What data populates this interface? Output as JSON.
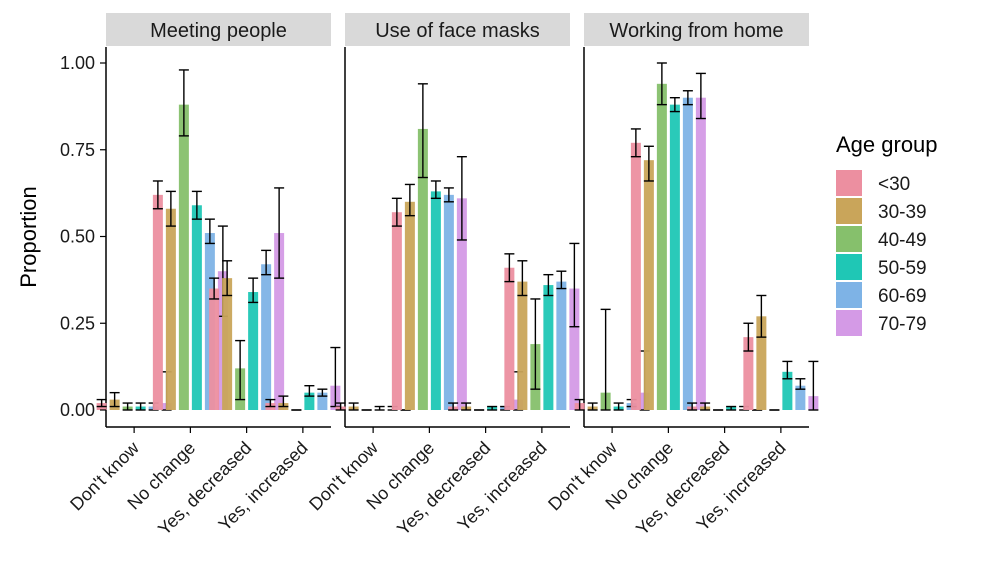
{
  "chart_data": {
    "type": "bar",
    "facet_variable": "behaviour",
    "facets": [
      "Meeting people",
      "Use of face masks",
      "Working from home"
    ],
    "categories": [
      "Don't know",
      "No change",
      "Yes, decreased",
      "Yes, increased"
    ],
    "ylabel": "Proportion",
    "xlabel": "",
    "ylim": [
      0,
      1.05
    ],
    "yticks": [
      "0.00",
      "0.25",
      "0.50",
      "0.75",
      "1.00"
    ],
    "ytick_values": [
      0,
      0.25,
      0.5,
      0.75,
      1.0
    ],
    "grid": false,
    "legend": {
      "title": "Age group",
      "position": "right",
      "entries": [
        "<30",
        "30-39",
        "40-49",
        "50-59",
        "60-69",
        "70-79"
      ],
      "colors": [
        "#ec8fa0",
        "#c9a55a",
        "#86c06c",
        "#1fc7b5",
        "#7eb3e6",
        "#d49ae6"
      ]
    },
    "panels": [
      {
        "facet": "Meeting people",
        "series": [
          {
            "name": "<30",
            "values": [
              0.02,
              0.62,
              0.35,
              0.02
            ],
            "err_low": [
              0.01,
              0.58,
              0.32,
              0.01
            ],
            "err_high": [
              0.03,
              0.66,
              0.38,
              0.03
            ]
          },
          {
            "name": "30-39",
            "values": [
              0.03,
              0.58,
              0.38,
              0.02
            ],
            "err_low": [
              0.01,
              0.53,
              0.33,
              0.01
            ],
            "err_high": [
              0.05,
              0.63,
              0.43,
              0.04
            ]
          },
          {
            "name": "40-49",
            "values": [
              0.01,
              0.88,
              0.12,
              0.0
            ],
            "err_low": [
              0.0,
              0.79,
              0.03,
              0.0
            ],
            "err_high": [
              0.02,
              0.98,
              0.2,
              0.0
            ]
          },
          {
            "name": "50-59",
            "values": [
              0.01,
              0.59,
              0.34,
              0.05
            ],
            "err_low": [
              0.0,
              0.55,
              0.31,
              0.04
            ],
            "err_high": [
              0.02,
              0.63,
              0.38,
              0.07
            ]
          },
          {
            "name": "60-69",
            "values": [
              0.01,
              0.51,
              0.42,
              0.05
            ],
            "err_low": [
              0.0,
              0.48,
              0.39,
              0.04
            ],
            "err_high": [
              0.02,
              0.55,
              0.46,
              0.06
            ]
          },
          {
            "name": "70-79",
            "values": [
              0.02,
              0.4,
              0.51,
              0.07
            ],
            "err_low": [
              0.0,
              0.27,
              0.38,
              0.01
            ],
            "err_high": [
              0.11,
              0.53,
              0.64,
              0.18
            ]
          }
        ]
      },
      {
        "facet": "Use of face masks",
        "series": [
          {
            "name": "<30",
            "values": [
              0.01,
              0.57,
              0.01,
              0.41
            ],
            "err_low": [
              0.0,
              0.53,
              0.0,
              0.37
            ],
            "err_high": [
              0.02,
              0.61,
              0.02,
              0.45
            ]
          },
          {
            "name": "30-39",
            "values": [
              0.01,
              0.6,
              0.01,
              0.37
            ],
            "err_low": [
              0.0,
              0.56,
              0.0,
              0.33
            ],
            "err_high": [
              0.02,
              0.65,
              0.02,
              0.43
            ]
          },
          {
            "name": "40-49",
            "values": [
              0.0,
              0.81,
              0.0,
              0.19
            ],
            "err_low": [
              0.0,
              0.67,
              0.0,
              0.06
            ],
            "err_high": [
              0.0,
              0.94,
              0.0,
              0.32
            ]
          },
          {
            "name": "50-59",
            "values": [
              0.0,
              0.63,
              0.01,
              0.36
            ],
            "err_low": [
              0.0,
              0.61,
              0.0,
              0.33
            ],
            "err_high": [
              0.01,
              0.66,
              0.01,
              0.39
            ]
          },
          {
            "name": "60-69",
            "values": [
              0.0,
              0.62,
              0.01,
              0.37
            ],
            "err_low": [
              0.0,
              0.6,
              0.0,
              0.35
            ],
            "err_high": [
              0.01,
              0.64,
              0.01,
              0.4
            ]
          },
          {
            "name": "70-79",
            "values": [
              0.0,
              0.61,
              0.03,
              0.35
            ],
            "err_low": [
              0.0,
              0.49,
              0.0,
              0.24
            ],
            "err_high": [
              0.0,
              0.73,
              0.11,
              0.48
            ]
          }
        ]
      },
      {
        "facet": "Working from home",
        "series": [
          {
            "name": "<30",
            "values": [
              0.02,
              0.77,
              0.01,
              0.21
            ],
            "err_low": [
              0.0,
              0.73,
              0.0,
              0.17
            ],
            "err_high": [
              0.03,
              0.81,
              0.02,
              0.25
            ]
          },
          {
            "name": "30-39",
            "values": [
              0.01,
              0.72,
              0.01,
              0.27
            ],
            "err_low": [
              0.0,
              0.66,
              0.0,
              0.21
            ],
            "err_high": [
              0.02,
              0.76,
              0.02,
              0.33
            ]
          },
          {
            "name": "40-49",
            "values": [
              0.05,
              0.94,
              0.0,
              0.0
            ],
            "err_low": [
              0.0,
              0.88,
              0.0,
              0.0
            ],
            "err_high": [
              0.29,
              1.0,
              0.0,
              0.0
            ]
          },
          {
            "name": "50-59",
            "values": [
              0.01,
              0.88,
              0.01,
              0.11
            ],
            "err_low": [
              0.0,
              0.86,
              0.0,
              0.09
            ],
            "err_high": [
              0.02,
              0.9,
              0.01,
              0.14
            ]
          },
          {
            "name": "60-69",
            "values": [
              0.02,
              0.9,
              0.0,
              0.07
            ],
            "err_low": [
              0.01,
              0.88,
              0.0,
              0.06
            ],
            "err_high": [
              0.03,
              0.92,
              0.01,
              0.09
            ]
          },
          {
            "name": "70-79",
            "values": [
              0.05,
              0.9,
              0.0,
              0.04
            ],
            "err_low": [
              0.0,
              0.84,
              0.0,
              0.0
            ],
            "err_high": [
              0.17,
              0.97,
              0.0,
              0.14
            ]
          }
        ]
      }
    ]
  }
}
